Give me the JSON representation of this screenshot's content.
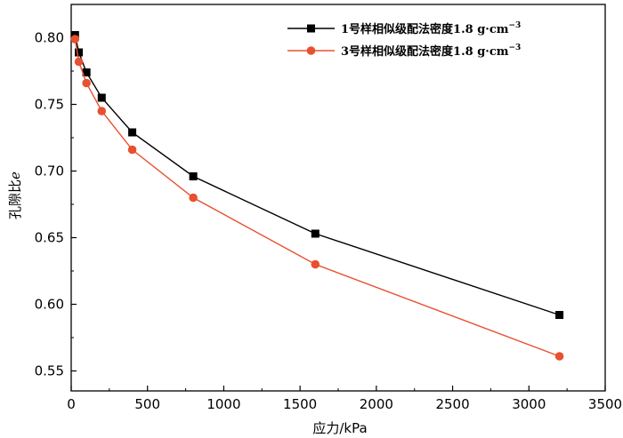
{
  "chart_data": {
    "type": "line",
    "xlabel": "应力/kPa",
    "ylabel": "孔隙比",
    "ylabel_symbol": "e",
    "xlim": [
      0,
      3500
    ],
    "ylim": [
      0.535,
      0.825
    ],
    "xticks": [
      0,
      500,
      1000,
      1500,
      2000,
      2500,
      3000,
      3500
    ],
    "xtick_labels": [
      "0",
      "500",
      "1000",
      "1500",
      "2000",
      "2500",
      "3000",
      "3500"
    ],
    "yticks": [
      0.55,
      0.6,
      0.65,
      0.7,
      0.75,
      0.8
    ],
    "ytick_labels": [
      "0.55",
      "0.60",
      "0.65",
      "0.70",
      "0.75",
      "0.80"
    ],
    "grid": false,
    "legend_position": "top-right",
    "x": [
      25,
      50,
      100,
      200,
      400,
      800,
      1600,
      3200
    ],
    "series": [
      {
        "name": "1号样相似级配法密度1.8",
        "unit": "g·cm",
        "unit_exp": "−3",
        "color": "#000000",
        "marker": "square",
        "values": [
          0.802,
          0.789,
          0.774,
          0.755,
          0.729,
          0.696,
          0.653,
          0.592
        ]
      },
      {
        "name": "3号样相似级配法密度1.8",
        "unit": "g·cm",
        "unit_exp": "−3",
        "color": "#e8502f",
        "marker": "circle",
        "values": [
          0.799,
          0.782,
          0.766,
          0.745,
          0.716,
          0.68,
          0.63,
          0.561
        ]
      }
    ]
  }
}
